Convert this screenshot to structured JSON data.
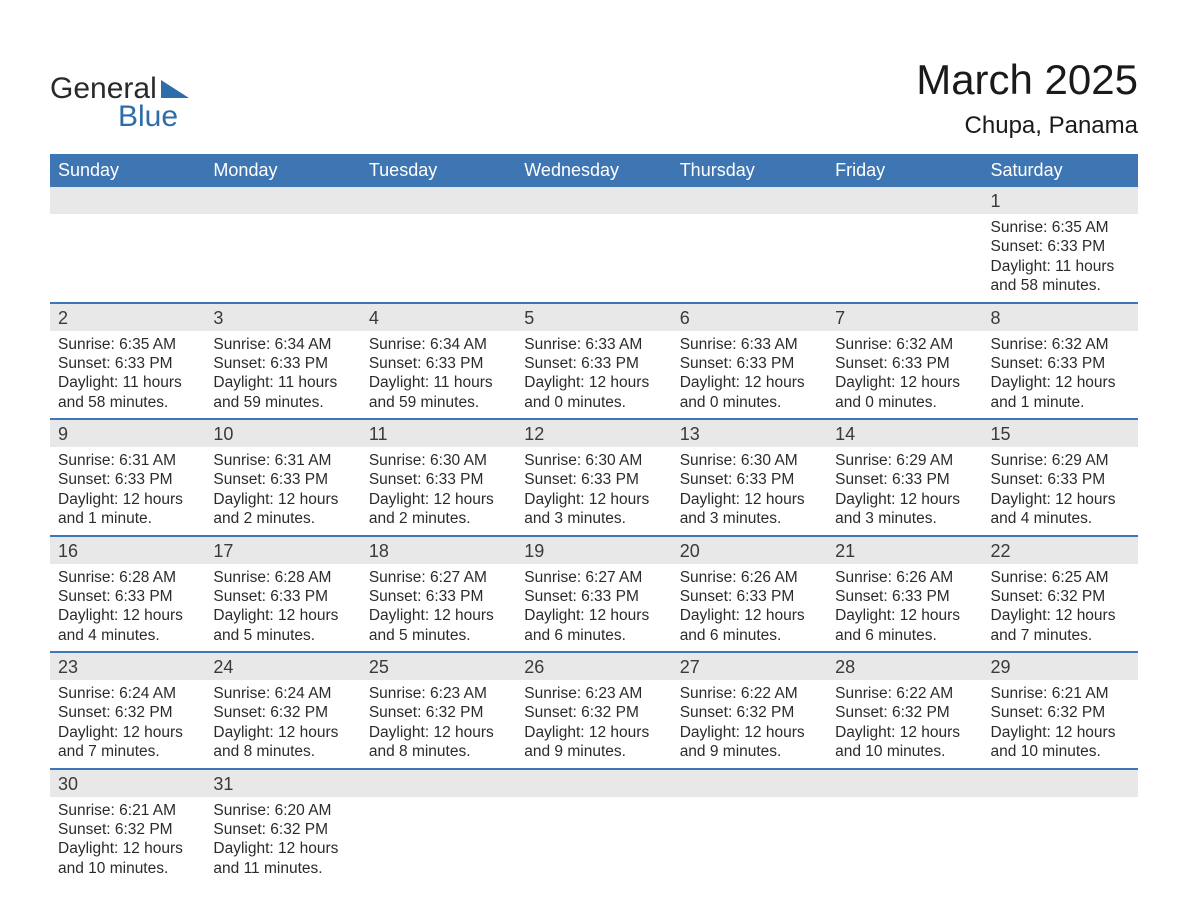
{
  "logo": {
    "text1": "General",
    "text2": "Blue"
  },
  "title": "March 2025",
  "location": "Chupa, Panama",
  "colors": {
    "header_blue": "#3d76b3",
    "day_stripe_bg": "#e8e8e8",
    "logo_blue": "#2f6da8",
    "text": "#2b2b2b"
  },
  "weekdays": [
    "Sunday",
    "Monday",
    "Tuesday",
    "Wednesday",
    "Thursday",
    "Friday",
    "Saturday"
  ],
  "weeks": [
    [
      null,
      null,
      null,
      null,
      null,
      null,
      {
        "d": "1",
        "sr": "Sunrise: 6:35 AM",
        "ss": "Sunset: 6:33 PM",
        "dl": "Daylight: 11 hours and 58 minutes."
      }
    ],
    [
      {
        "d": "2",
        "sr": "Sunrise: 6:35 AM",
        "ss": "Sunset: 6:33 PM",
        "dl": "Daylight: 11 hours and 58 minutes."
      },
      {
        "d": "3",
        "sr": "Sunrise: 6:34 AM",
        "ss": "Sunset: 6:33 PM",
        "dl": "Daylight: 11 hours and 59 minutes."
      },
      {
        "d": "4",
        "sr": "Sunrise: 6:34 AM",
        "ss": "Sunset: 6:33 PM",
        "dl": "Daylight: 11 hours and 59 minutes."
      },
      {
        "d": "5",
        "sr": "Sunrise: 6:33 AM",
        "ss": "Sunset: 6:33 PM",
        "dl": "Daylight: 12 hours and 0 minutes."
      },
      {
        "d": "6",
        "sr": "Sunrise: 6:33 AM",
        "ss": "Sunset: 6:33 PM",
        "dl": "Daylight: 12 hours and 0 minutes."
      },
      {
        "d": "7",
        "sr": "Sunrise: 6:32 AM",
        "ss": "Sunset: 6:33 PM",
        "dl": "Daylight: 12 hours and 0 minutes."
      },
      {
        "d": "8",
        "sr": "Sunrise: 6:32 AM",
        "ss": "Sunset: 6:33 PM",
        "dl": "Daylight: 12 hours and 1 minute."
      }
    ],
    [
      {
        "d": "9",
        "sr": "Sunrise: 6:31 AM",
        "ss": "Sunset: 6:33 PM",
        "dl": "Daylight: 12 hours and 1 minute."
      },
      {
        "d": "10",
        "sr": "Sunrise: 6:31 AM",
        "ss": "Sunset: 6:33 PM",
        "dl": "Daylight: 12 hours and 2 minutes."
      },
      {
        "d": "11",
        "sr": "Sunrise: 6:30 AM",
        "ss": "Sunset: 6:33 PM",
        "dl": "Daylight: 12 hours and 2 minutes."
      },
      {
        "d": "12",
        "sr": "Sunrise: 6:30 AM",
        "ss": "Sunset: 6:33 PM",
        "dl": "Daylight: 12 hours and 3 minutes."
      },
      {
        "d": "13",
        "sr": "Sunrise: 6:30 AM",
        "ss": "Sunset: 6:33 PM",
        "dl": "Daylight: 12 hours and 3 minutes."
      },
      {
        "d": "14",
        "sr": "Sunrise: 6:29 AM",
        "ss": "Sunset: 6:33 PM",
        "dl": "Daylight: 12 hours and 3 minutes."
      },
      {
        "d": "15",
        "sr": "Sunrise: 6:29 AM",
        "ss": "Sunset: 6:33 PM",
        "dl": "Daylight: 12 hours and 4 minutes."
      }
    ],
    [
      {
        "d": "16",
        "sr": "Sunrise: 6:28 AM",
        "ss": "Sunset: 6:33 PM",
        "dl": "Daylight: 12 hours and 4 minutes."
      },
      {
        "d": "17",
        "sr": "Sunrise: 6:28 AM",
        "ss": "Sunset: 6:33 PM",
        "dl": "Daylight: 12 hours and 5 minutes."
      },
      {
        "d": "18",
        "sr": "Sunrise: 6:27 AM",
        "ss": "Sunset: 6:33 PM",
        "dl": "Daylight: 12 hours and 5 minutes."
      },
      {
        "d": "19",
        "sr": "Sunrise: 6:27 AM",
        "ss": "Sunset: 6:33 PM",
        "dl": "Daylight: 12 hours and 6 minutes."
      },
      {
        "d": "20",
        "sr": "Sunrise: 6:26 AM",
        "ss": "Sunset: 6:33 PM",
        "dl": "Daylight: 12 hours and 6 minutes."
      },
      {
        "d": "21",
        "sr": "Sunrise: 6:26 AM",
        "ss": "Sunset: 6:33 PM",
        "dl": "Daylight: 12 hours and 6 minutes."
      },
      {
        "d": "22",
        "sr": "Sunrise: 6:25 AM",
        "ss": "Sunset: 6:32 PM",
        "dl": "Daylight: 12 hours and 7 minutes."
      }
    ],
    [
      {
        "d": "23",
        "sr": "Sunrise: 6:24 AM",
        "ss": "Sunset: 6:32 PM",
        "dl": "Daylight: 12 hours and 7 minutes."
      },
      {
        "d": "24",
        "sr": "Sunrise: 6:24 AM",
        "ss": "Sunset: 6:32 PM",
        "dl": "Daylight: 12 hours and 8 minutes."
      },
      {
        "d": "25",
        "sr": "Sunrise: 6:23 AM",
        "ss": "Sunset: 6:32 PM",
        "dl": "Daylight: 12 hours and 8 minutes."
      },
      {
        "d": "26",
        "sr": "Sunrise: 6:23 AM",
        "ss": "Sunset: 6:32 PM",
        "dl": "Daylight: 12 hours and 9 minutes."
      },
      {
        "d": "27",
        "sr": "Sunrise: 6:22 AM",
        "ss": "Sunset: 6:32 PM",
        "dl": "Daylight: 12 hours and 9 minutes."
      },
      {
        "d": "28",
        "sr": "Sunrise: 6:22 AM",
        "ss": "Sunset: 6:32 PM",
        "dl": "Daylight: 12 hours and 10 minutes."
      },
      {
        "d": "29",
        "sr": "Sunrise: 6:21 AM",
        "ss": "Sunset: 6:32 PM",
        "dl": "Daylight: 12 hours and 10 minutes."
      }
    ],
    [
      {
        "d": "30",
        "sr": "Sunrise: 6:21 AM",
        "ss": "Sunset: 6:32 PM",
        "dl": "Daylight: 12 hours and 10 minutes."
      },
      {
        "d": "31",
        "sr": "Sunrise: 6:20 AM",
        "ss": "Sunset: 6:32 PM",
        "dl": "Daylight: 12 hours and 11 minutes."
      },
      null,
      null,
      null,
      null,
      null
    ]
  ]
}
